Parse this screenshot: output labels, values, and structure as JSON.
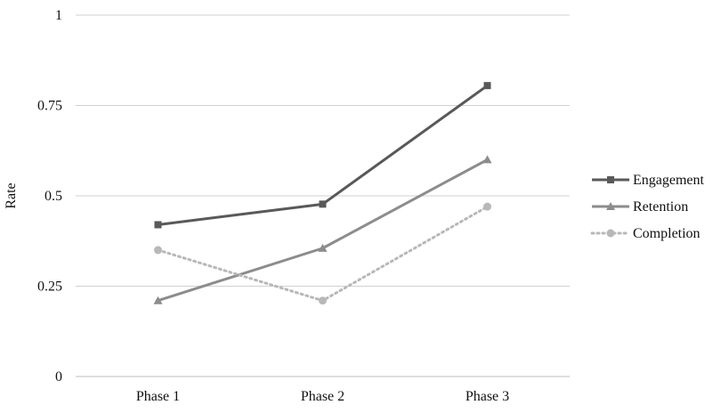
{
  "chart_data": {
    "type": "line",
    "categories": [
      "Phase 1",
      "Phase 2",
      "Phase 3"
    ],
    "series": [
      {
        "name": "Engagement",
        "values": [
          0.42,
          0.477,
          0.805
        ],
        "color": "#595959",
        "marker": "square",
        "dash": "solid"
      },
      {
        "name": "Retention",
        "values": [
          0.21,
          0.355,
          0.6
        ],
        "color": "#8c8c8c",
        "marker": "triangle",
        "dash": "solid"
      },
      {
        "name": "Completion",
        "values": [
          0.35,
          0.21,
          0.47
        ],
        "color": "#b8b8b8",
        "marker": "circle",
        "dash": "dotted"
      }
    ],
    "ylabel": "Rate",
    "xlabel": "",
    "ylim": [
      0,
      1
    ],
    "yticks": [
      "0",
      "0.25",
      "0.5",
      "0.75",
      "1"
    ],
    "grid": true,
    "legend": "right"
  }
}
